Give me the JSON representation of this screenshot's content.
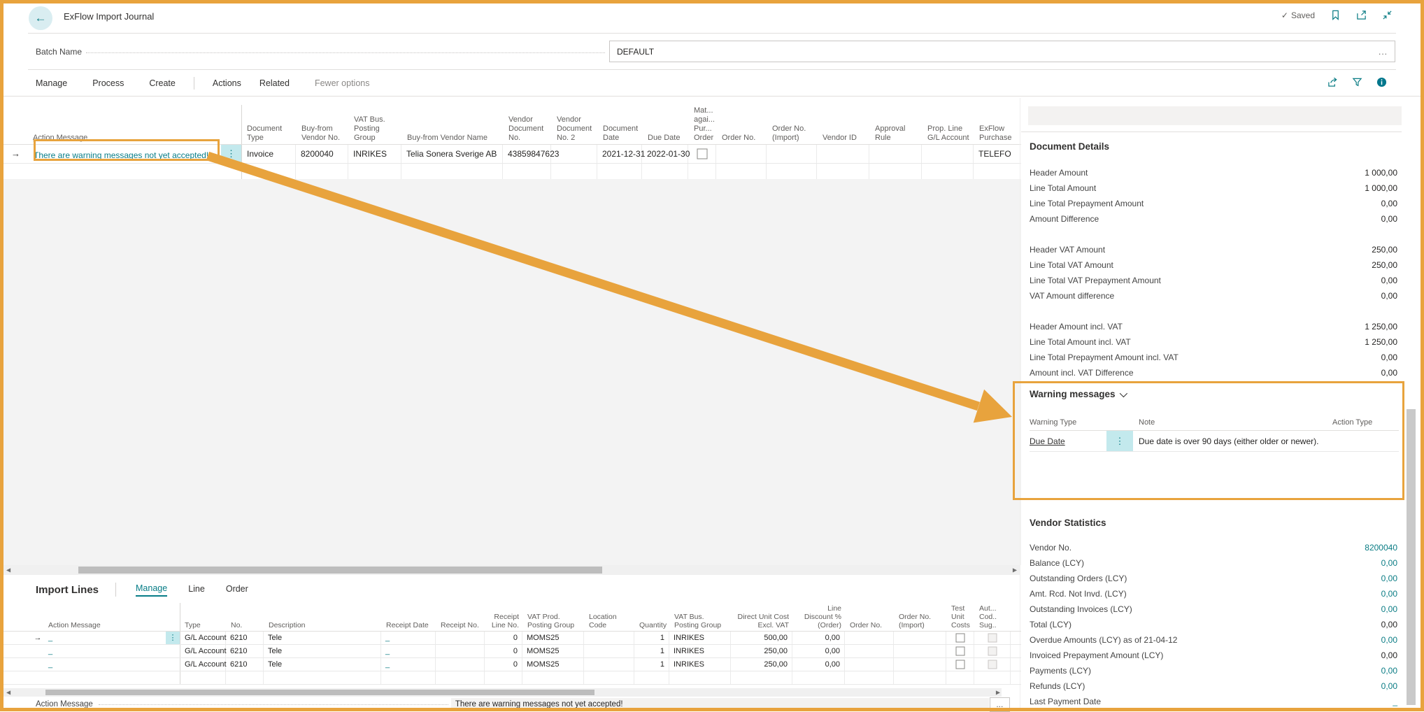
{
  "colors": {
    "accent": "#0a7c84",
    "annotation_orange": "#e8a33d"
  },
  "header": {
    "title": "ExFlow Import Journal",
    "saved_label": "Saved"
  },
  "batch": {
    "label": "Batch Name",
    "value": "DEFAULT",
    "more": "..."
  },
  "menu": {
    "group1": [
      {
        "t": "Manage"
      },
      {
        "t": "Process"
      },
      {
        "t": "Create"
      }
    ],
    "group2": [
      {
        "t": "Actions"
      },
      {
        "t": "Related"
      }
    ],
    "fewer": "Fewer options"
  },
  "main_grid": {
    "action_col": "Action Message",
    "columns": [
      {
        "t": "Document Type"
      },
      {
        "t": "Buy-from Vendor No."
      },
      {
        "t": "VAT Bus. Posting Group"
      },
      {
        "t": "Buy-from Vendor Name"
      },
      {
        "t": "Vendor Document No."
      },
      {
        "t": "Vendor Document No. 2"
      },
      {
        "t": "Document Date"
      },
      {
        "t": "Due Date"
      },
      {
        "t": "Mat... agai... Pur... Order"
      },
      {
        "t": "Order No."
      },
      {
        "t": "Order No. (Import)"
      },
      {
        "t": "Vendor ID"
      },
      {
        "t": "Approval Rule"
      },
      {
        "t": "Prop. Line G/L Account"
      },
      {
        "t": "ExFlow Purchase"
      }
    ],
    "row_link": "There are warning messages not yet accepted!",
    "cells": [
      {
        "t": "Invoice"
      },
      {
        "t": "8200040"
      },
      {
        "t": "INRIKES"
      },
      {
        "t": "Telia Sonera Sverige AB"
      },
      {
        "t": "43859847623"
      },
      {
        "t": ""
      },
      {
        "t": "2021-12-31"
      },
      {
        "t": "2022-01-30"
      },
      {
        "t": "",
        "cls": "cb"
      },
      {
        "t": ""
      },
      {
        "t": ""
      },
      {
        "t": ""
      },
      {
        "t": ""
      },
      {
        "t": ""
      },
      {
        "t": "TELEFO"
      }
    ]
  },
  "details": {
    "title": "Document Details",
    "group1": [
      {
        "label": "Header Amount",
        "value": "1 000,00"
      },
      {
        "label": "Line Total Amount",
        "value": "1 000,00"
      },
      {
        "label": "Line Total Prepayment Amount",
        "value": "0,00"
      },
      {
        "label": "Amount Difference",
        "value": "0,00"
      }
    ],
    "group2": [
      {
        "label": "Header VAT Amount",
        "value": "250,00"
      },
      {
        "label": "Line Total VAT Amount",
        "value": "250,00"
      },
      {
        "label": "Line Total VAT Prepayment Amount",
        "value": "0,00"
      },
      {
        "label": "VAT Amount difference",
        "value": "0,00"
      }
    ],
    "group3": [
      {
        "label": "Header Amount incl. VAT",
        "value": "1 250,00"
      },
      {
        "label": "Line Total Amount incl. VAT",
        "value": "1 250,00"
      },
      {
        "label": "Line Total Prepayment Amount incl. VAT",
        "value": "0,00"
      },
      {
        "label": "Amount incl. VAT Difference",
        "value": "0,00"
      }
    ]
  },
  "warnings": {
    "title": "Warning messages",
    "col_type": "Warning Type",
    "col_note": "Note",
    "col_action": "Action Type",
    "row": {
      "type": "Due Date",
      "note": "Due date is over 90 days (either older or newer)."
    }
  },
  "stats": {
    "title": "Vendor Statistics",
    "rows": [
      {
        "label": "Vendor No.",
        "value": "8200040",
        "cls": "teal"
      },
      {
        "label": "Balance (LCY)",
        "value": "0,00",
        "cls": "teal"
      },
      {
        "label": "Outstanding Orders (LCY)",
        "value": "0,00",
        "cls": "teal"
      },
      {
        "label": "Amt. Rcd. Not Invd. (LCY)",
        "value": "0,00",
        "cls": "teal"
      },
      {
        "label": "Outstanding Invoices (LCY)",
        "value": "0,00",
        "cls": "teal"
      },
      {
        "label": "Total (LCY)",
        "value": "0,00"
      },
      {
        "label": "Overdue Amounts (LCY) as of 21-04-12",
        "value": "0,00",
        "cls": "teal"
      },
      {
        "label": "Invoiced Prepayment Amount (LCY)",
        "value": "0,00"
      },
      {
        "label": "Payments (LCY)",
        "value": "0,00",
        "cls": "teal"
      },
      {
        "label": "Refunds (LCY)",
        "value": "0,00",
        "cls": "teal"
      },
      {
        "label": "Last Payment Date",
        "value": "_",
        "cls": "teal"
      }
    ]
  },
  "import_lines": {
    "title": "Import Lines",
    "tabs": {
      "manage": "Manage",
      "line": "Line",
      "order": "Order"
    },
    "action_col": "Action Message",
    "columns": [
      {
        "t": "Type"
      },
      {
        "t": "No."
      },
      {
        "t": "Description"
      },
      {
        "t": "Receipt Date"
      },
      {
        "t": "Receipt No."
      },
      {
        "t": "Receipt Line No.",
        "cls": "num"
      },
      {
        "t": "VAT Prod. Posting Group"
      },
      {
        "t": "Location Code"
      },
      {
        "t": "Quantity",
        "cls": "num"
      },
      {
        "t": "VAT Bus. Posting Group"
      },
      {
        "t": "Direct Unit Cost Excl. VAT",
        "cls": "num"
      },
      {
        "t": "Line Discount % (Order)",
        "cls": "num"
      },
      {
        "t": "Order No."
      },
      {
        "t": "Order No. (Import)"
      },
      {
        "t": "Test Unit Costs"
      },
      {
        "t": "Aut... Cod.. Sug.."
      }
    ],
    "rows": [
      {
        "am": "_",
        "cells": [
          {
            "t": "G/L Account"
          },
          {
            "t": "6210"
          },
          {
            "t": "Tele"
          },
          {
            "t": "_",
            "cls": "teal"
          },
          {
            "t": ""
          },
          {
            "t": "0",
            "cls": "num"
          },
          {
            "t": "MOMS25"
          },
          {
            "t": ""
          },
          {
            "t": "1",
            "cls": "num"
          },
          {
            "t": "INRIKES"
          },
          {
            "t": "500,00",
            "cls": "num"
          },
          {
            "t": "0,00",
            "cls": "num"
          },
          {
            "t": ""
          },
          {
            "t": ""
          },
          {
            "t": "",
            "cls": "cb"
          },
          {
            "t": "",
            "cls": "cb dis"
          }
        ]
      },
      {
        "am": "_",
        "cells": [
          {
            "t": "G/L Account"
          },
          {
            "t": "6210"
          },
          {
            "t": "Tele"
          },
          {
            "t": "_",
            "cls": "teal"
          },
          {
            "t": ""
          },
          {
            "t": "0",
            "cls": "num"
          },
          {
            "t": "MOMS25"
          },
          {
            "t": ""
          },
          {
            "t": "1",
            "cls": "num"
          },
          {
            "t": "INRIKES"
          },
          {
            "t": "250,00",
            "cls": "num"
          },
          {
            "t": "0,00",
            "cls": "num"
          },
          {
            "t": ""
          },
          {
            "t": ""
          },
          {
            "t": "",
            "cls": "cb"
          },
          {
            "t": "",
            "cls": "cb dis"
          }
        ]
      },
      {
        "am": "_",
        "cells": [
          {
            "t": "G/L Account"
          },
          {
            "t": "6210"
          },
          {
            "t": "Tele"
          },
          {
            "t": "_",
            "cls": "teal"
          },
          {
            "t": ""
          },
          {
            "t": "0",
            "cls": "num"
          },
          {
            "t": "MOMS25"
          },
          {
            "t": ""
          },
          {
            "t": "1",
            "cls": "num"
          },
          {
            "t": "INRIKES"
          },
          {
            "t": "250,00",
            "cls": "num"
          },
          {
            "t": "0,00",
            "cls": "num"
          },
          {
            "t": ""
          },
          {
            "t": ""
          },
          {
            "t": "",
            "cls": "cb"
          },
          {
            "t": "",
            "cls": "cb dis"
          }
        ]
      }
    ]
  },
  "footer": {
    "label": "Action Message",
    "value": "There are warning messages not yet accepted!",
    "more": "..."
  }
}
